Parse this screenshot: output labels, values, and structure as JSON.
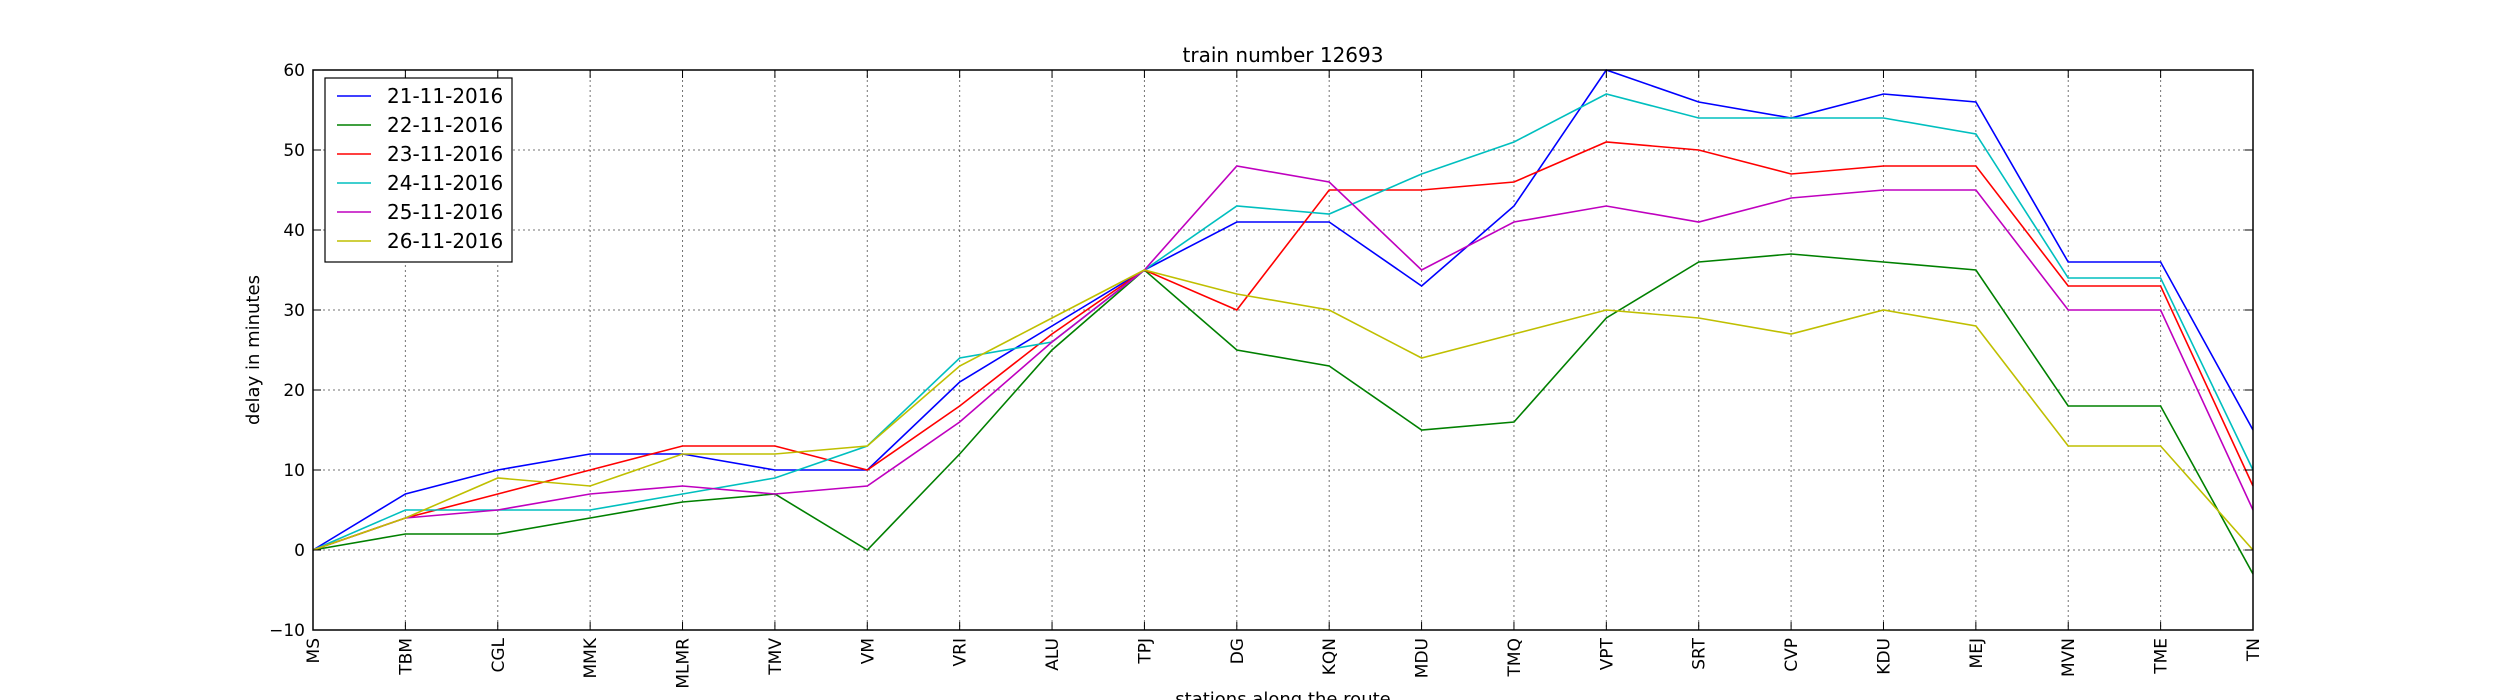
{
  "chart_data": {
    "type": "line",
    "title": "train number 12693",
    "xlabel": "stations along the route",
    "ylabel": "delay in minutes",
    "ylim": [
      -10,
      60
    ],
    "yticks": [
      -10,
      0,
      10,
      20,
      30,
      40,
      50,
      60
    ],
    "grid": true,
    "legend_position": "top-left",
    "categories": [
      "MS",
      "TBM",
      "CGL",
      "MMK",
      "MLMR",
      "TMV",
      "VM",
      "VRI",
      "ALU",
      "TPJ",
      "DG",
      "KQN",
      "MDU",
      "TMQ",
      "VPT",
      "SRT",
      "CVP",
      "KDU",
      "MEJ",
      "MVN",
      "TME",
      "TN"
    ],
    "series": [
      {
        "name": "21-11-2016",
        "color": "#0000ff",
        "values": [
          0,
          7,
          10,
          12,
          12,
          10,
          10,
          21,
          28,
          35,
          41,
          41,
          33,
          43,
          60,
          56,
          54,
          57,
          56,
          36,
          36,
          15
        ]
      },
      {
        "name": "22-11-2016",
        "color": "#008000",
        "values": [
          0,
          2,
          2,
          4,
          6,
          7,
          0,
          12,
          25,
          35,
          25,
          23,
          15,
          16,
          29,
          36,
          37,
          36,
          35,
          18,
          18,
          -3
        ]
      },
      {
        "name": "23-11-2016",
        "color": "#ff0000",
        "values": [
          0,
          4,
          7,
          10,
          13,
          13,
          10,
          18,
          27,
          35,
          30,
          45,
          45,
          46,
          51,
          50,
          47,
          48,
          48,
          33,
          33,
          8
        ]
      },
      {
        "name": "24-11-2016",
        "color": "#00bfbf",
        "values": [
          0,
          5,
          5,
          5,
          7,
          9,
          13,
          24,
          26,
          35,
          43,
          42,
          47,
          51,
          57,
          54,
          54,
          54,
          52,
          34,
          34,
          10
        ]
      },
      {
        "name": "25-11-2016",
        "color": "#bf00bf",
        "values": [
          0,
          4,
          5,
          7,
          8,
          7,
          8,
          16,
          26,
          35,
          48,
          46,
          35,
          41,
          43,
          41,
          44,
          45,
          45,
          30,
          30,
          5
        ]
      },
      {
        "name": "26-11-2016",
        "color": "#bfbf00",
        "values": [
          0,
          4,
          9,
          8,
          12,
          12,
          13,
          23,
          29,
          35,
          32,
          30,
          24,
          27,
          30,
          29,
          27,
          30,
          28,
          13,
          13,
          0
        ]
      }
    ]
  }
}
